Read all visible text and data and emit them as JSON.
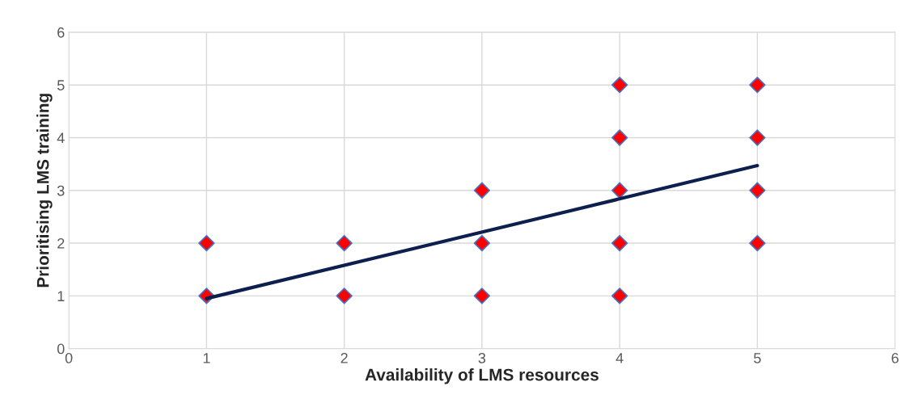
{
  "chart_data": {
    "type": "scatter",
    "xlabel": "Availability of LMS resources",
    "ylabel": "Prioritising LMS training",
    "xlim": [
      0,
      6
    ],
    "xticks": [
      0,
      1,
      2,
      3,
      4,
      5,
      6
    ],
    "ylim": [
      0,
      6
    ],
    "yticks": [
      0,
      1,
      2,
      3,
      4,
      5,
      6
    ],
    "grid": true,
    "series": [
      {
        "marker": "diamond",
        "color": "#ff0000",
        "x": [
          1,
          1,
          2,
          2,
          3,
          3,
          3,
          4,
          4,
          4,
          4,
          4,
          5,
          5,
          5,
          5
        ],
        "values": [
          1,
          2,
          1,
          2,
          1,
          2,
          3,
          1,
          2,
          3,
          4,
          5,
          2,
          3,
          4,
          5
        ]
      },
      {
        "type": "line",
        "marker": "none",
        "color": "#0d1f4f",
        "x": [
          1,
          5
        ],
        "values": [
          0.95,
          3.47
        ]
      }
    ]
  }
}
